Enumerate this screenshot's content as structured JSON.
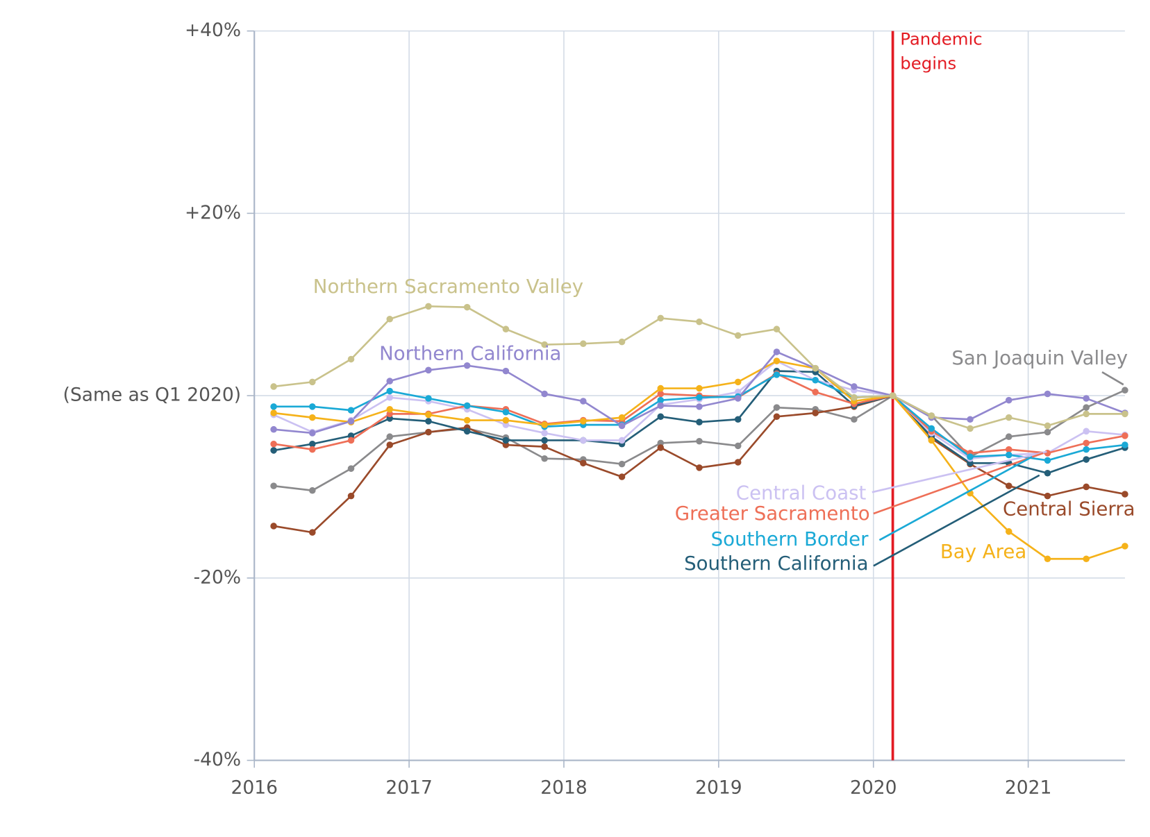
{
  "chart_data": {
    "type": "line",
    "x": [
      2016.125,
      2016.375,
      2016.625,
      2016.875,
      2017.125,
      2017.375,
      2017.625,
      2017.875,
      2018.125,
      2018.375,
      2018.625,
      2018.875,
      2019.125,
      2019.375,
      2019.625,
      2019.875,
      2020.125,
      2020.375,
      2020.625,
      2020.875,
      2021.125,
      2021.375,
      2021.625
    ],
    "xlim": [
      2016,
      2021.625
    ],
    "xticks": [
      2016,
      2017,
      2018,
      2019,
      2020,
      2021
    ],
    "ylim": [
      -40,
      40
    ],
    "yticks": [
      {
        "value": -40,
        "label": "-40%"
      },
      {
        "value": -20,
        "label": "-20%"
      },
      {
        "value": 0,
        "label": "(Same as Q1 2020)"
      },
      {
        "value": 20,
        "label": "+20%"
      },
      {
        "value": 40,
        "label": "+40%"
      }
    ],
    "grid": true,
    "annotation": {
      "x": 2020.125,
      "lines": [
        "Pandemic",
        "begins"
      ],
      "color": "#e31b23"
    },
    "series": [
      {
        "name": "San Joaquin Valley",
        "color": "#8a8a8c",
        "values": [
          -9.9,
          -10.4,
          -8.0,
          -4.5,
          -4.0,
          -3.6,
          -4.6,
          -6.9,
          -7.0,
          -7.5,
          -5.2,
          -5.0,
          -5.5,
          -1.3,
          -1.5,
          -2.6,
          0,
          -2.2,
          -6.7,
          -4.5,
          -4.0,
          -1.3,
          0.6
        ]
      },
      {
        "name": "Central Sierra",
        "color": "#9a4a2a",
        "values": [
          -14.3,
          -15.0,
          -11.0,
          -5.4,
          -4.0,
          -3.5,
          -5.4,
          -5.6,
          -7.4,
          -8.9,
          -5.7,
          -7.9,
          -7.3,
          -2.3,
          -1.9,
          -1.2,
          0,
          -4.7,
          -7.5,
          -9.9,
          -11.0,
          -10.0,
          -10.8
        ]
      },
      {
        "name": "Southern California",
        "color": "#245e78",
        "values": [
          -6.0,
          -5.3,
          -4.4,
          -2.5,
          -2.8,
          -3.9,
          -4.9,
          -4.9,
          -4.9,
          -5.3,
          -2.3,
          -2.9,
          -2.6,
          2.7,
          2.6,
          -1.1,
          0,
          -4.5,
          -7.4,
          -7.4,
          -8.5,
          -7.0,
          -5.7
        ]
      },
      {
        "name": "Central Coast",
        "color": "#cbc1f2",
        "values": [
          -2.1,
          -4.0,
          -2.7,
          -0.2,
          -0.6,
          -1.5,
          -3.2,
          -4.1,
          -4.9,
          -4.9,
          -1.0,
          -0.4,
          0.4,
          3.8,
          1.7,
          0.6,
          0,
          -4.1,
          -6.9,
          -6.5,
          -6.3,
          -3.9,
          -4.3
        ]
      },
      {
        "name": "Greater Sacramento",
        "color": "#ee6f57",
        "values": [
          -5.3,
          -5.9,
          -4.9,
          -2.0,
          -2.0,
          -1.1,
          -1.5,
          -3.1,
          -2.7,
          -2.8,
          0.2,
          0,
          -0.2,
          2.4,
          0.4,
          -0.9,
          0,
          -3.9,
          -6.3,
          -5.9,
          -6.3,
          -5.2,
          -4.4
        ]
      },
      {
        "name": "Southern Border",
        "color": "#1aa9d6",
        "values": [
          -1.2,
          -1.2,
          -1.6,
          0.5,
          -0.3,
          -1.1,
          -1.8,
          -3.4,
          -3.2,
          -3.2,
          -0.5,
          -0.2,
          -0.1,
          2.3,
          1.7,
          -0.2,
          0,
          -3.6,
          -6.7,
          -6.5,
          -7.1,
          -5.9,
          -5.4
        ]
      },
      {
        "name": "Bay Area",
        "color": "#f5b21a",
        "values": [
          -1.9,
          -2.4,
          -2.9,
          -1.5,
          -2.1,
          -2.7,
          -2.7,
          -3.2,
          -2.8,
          -2.4,
          0.8,
          0.8,
          1.5,
          3.8,
          3.0,
          -0.6,
          0,
          -4.9,
          -10.7,
          -14.9,
          -17.9,
          -17.9,
          -16.5
        ]
      },
      {
        "name": "Northern California",
        "color": "#9287cf",
        "values": [
          -3.7,
          -4.1,
          -2.8,
          1.6,
          2.8,
          3.3,
          2.7,
          0.2,
          -0.6,
          -3.3,
          -1.1,
          -1.2,
          -0.3,
          4.8,
          3.0,
          1.0,
          0,
          -2.4,
          -2.6,
          -0.5,
          0.2,
          -0.3,
          -1.9
        ]
      },
      {
        "name": "Northern Sacramento Valley",
        "color": "#c9c28b",
        "values": [
          1.0,
          1.5,
          4.0,
          8.4,
          9.8,
          9.7,
          7.3,
          5.6,
          5.7,
          5.9,
          8.5,
          8.1,
          6.6,
          7.3,
          3.0,
          -0.2,
          0,
          -2.2,
          -3.6,
          -2.4,
          -3.3,
          -2.0,
          -2.0
        ]
      }
    ]
  }
}
